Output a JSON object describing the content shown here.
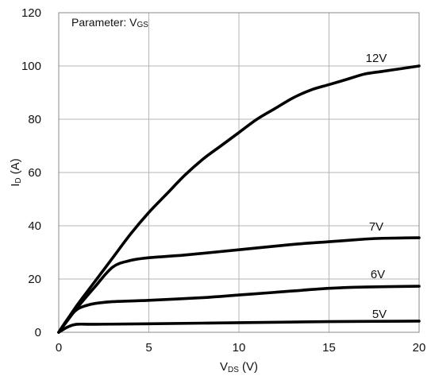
{
  "chart_data": {
    "type": "line",
    "title": "",
    "annotation": {
      "prefix": "Parameter: V",
      "subscript": "GS"
    },
    "xlabel": {
      "main": "V",
      "subscript": "DS",
      "suffix": " (V)"
    },
    "ylabel": {
      "main": "I",
      "subscript": "D",
      "suffix": " (A)"
    },
    "xlim": [
      0,
      20
    ],
    "ylim": [
      0,
      120
    ],
    "xticks": [
      "0",
      "5",
      "10",
      "15",
      "20"
    ],
    "yticks": [
      "0",
      "20",
      "40",
      "60",
      "80",
      "100",
      "120"
    ],
    "grid": true,
    "legend": "none",
    "series": [
      {
        "name": "12V",
        "x": [
          0,
          1,
          2,
          3,
          4,
          5,
          6,
          7,
          8,
          9,
          10,
          11,
          12,
          13,
          14,
          15,
          16,
          17,
          18,
          19,
          20
        ],
        "y": [
          0,
          10,
          19,
          28,
          37,
          45,
          52,
          59,
          65,
          70,
          75,
          80,
          84,
          88,
          91,
          93,
          95,
          97,
          98,
          99,
          100
        ]
      },
      {
        "name": "7V",
        "x": [
          0,
          1,
          2,
          3,
          4,
          5,
          7,
          10,
          13,
          15,
          17,
          18,
          20
        ],
        "y": [
          0,
          9,
          17,
          24.5,
          27,
          28,
          29,
          31,
          33,
          34,
          35,
          35.3,
          35.5
        ]
      },
      {
        "name": "6V",
        "x": [
          0,
          0.5,
          1,
          1.5,
          2,
          3,
          5,
          8,
          10,
          12,
          15,
          17,
          20
        ],
        "y": [
          0,
          5,
          8.5,
          10,
          10.8,
          11.5,
          12,
          13,
          14,
          15,
          16.5,
          17,
          17.3
        ]
      },
      {
        "name": "5V",
        "x": [
          0,
          0.5,
          1,
          2,
          5,
          10,
          15,
          20
        ],
        "y": [
          0,
          2,
          3,
          3,
          3.2,
          3.6,
          4,
          4.2
        ]
      }
    ]
  }
}
